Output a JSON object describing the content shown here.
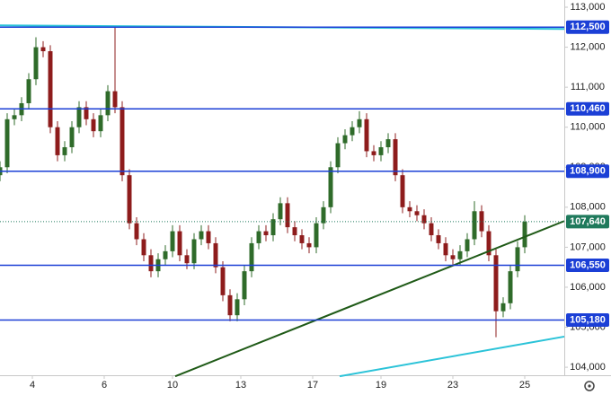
{
  "chart_data": {
    "type": "candlestick",
    "x": [
      0,
      2,
      4,
      6,
      8,
      10,
      12,
      14,
      16,
      18,
      20,
      22,
      24,
      26,
      28,
      30,
      32,
      34,
      36,
      38,
      40,
      42,
      44,
      46,
      48,
      50,
      52,
      54,
      56,
      58,
      60,
      62,
      64,
      66,
      68,
      70,
      72,
      74,
      76,
      78,
      80,
      82,
      84,
      86,
      88,
      90,
      92,
      94,
      96,
      98,
      100,
      102,
      104,
      106,
      108,
      110,
      112,
      114,
      116,
      118,
      120,
      122,
      124,
      126,
      128,
      130,
      132,
      134,
      136,
      138,
      140,
      142,
      144,
      146
    ],
    "open": [
      108800,
      109000,
      110200,
      110300,
      110600,
      111200,
      112000,
      111900,
      110000,
      109300,
      109500,
      110000,
      110500,
      110200,
      109900,
      110300,
      110900,
      110500,
      108800,
      107600,
      107200,
      106800,
      106400,
      106700,
      106900,
      107400,
      106800,
      106600,
      107200,
      107400,
      107100,
      106500,
      105800,
      105300,
      105700,
      106400,
      107100,
      107400,
      107300,
      107700,
      108100,
      107500,
      107300,
      107100,
      107000,
      107600,
      108000,
      109000,
      109600,
      109800,
      110000,
      110200,
      109400,
      109300,
      109500,
      109700,
      108800,
      108000,
      107900,
      107800,
      107600,
      107300,
      107100,
      106800,
      106700,
      106900,
      107200,
      107900,
      107400,
      106800,
      105400,
      105600,
      106400,
      107000
    ],
    "high": [
      109150,
      110350,
      110450,
      110750,
      111350,
      112250,
      112150,
      112050,
      110150,
      109650,
      110150,
      110650,
      110650,
      110350,
      110450,
      111050,
      112500,
      110650,
      108950,
      107750,
      107350,
      106950,
      106850,
      107050,
      107550,
      107550,
      106950,
      107350,
      107550,
      107550,
      107250,
      106650,
      105950,
      105850,
      106550,
      107250,
      107550,
      107550,
      107850,
      108250,
      108250,
      107650,
      107450,
      107250,
      107750,
      108150,
      109150,
      109750,
      109950,
      110150,
      110400,
      110350,
      109550,
      109650,
      109850,
      109850,
      108950,
      108150,
      108050,
      107950,
      107750,
      107450,
      107250,
      106950,
      107050,
      107350,
      108150,
      108050,
      107550,
      106950,
      105750,
      106550,
      107150,
      107800
    ],
    "low": [
      108650,
      108850,
      110050,
      110150,
      110450,
      111050,
      111750,
      109850,
      109150,
      109150,
      109350,
      109850,
      110050,
      109750,
      109750,
      110150,
      110350,
      108650,
      107450,
      107050,
      106650,
      106250,
      106250,
      106550,
      106750,
      106650,
      106450,
      106450,
      107050,
      106950,
      106350,
      105650,
      105150,
      105150,
      105550,
      106250,
      106950,
      107150,
      107150,
      107550,
      107350,
      107150,
      106950,
      106850,
      106850,
      107450,
      107850,
      108850,
      109450,
      109650,
      109850,
      109250,
      109150,
      109150,
      109350,
      108650,
      107850,
      107750,
      107650,
      107450,
      107150,
      106950,
      106650,
      106550,
      106550,
      106750,
      107050,
      107250,
      106650,
      104750,
      105250,
      105450,
      106250,
      106850
    ],
    "close": [
      109000,
      110200,
      110300,
      110600,
      111200,
      112000,
      111900,
      110000,
      109300,
      109500,
      110000,
      110500,
      110200,
      109900,
      110300,
      110900,
      110500,
      108800,
      107600,
      107200,
      106800,
      106400,
      106700,
      106900,
      107400,
      106800,
      106600,
      107200,
      107400,
      107100,
      106500,
      105800,
      105300,
      105700,
      106400,
      107100,
      107400,
      107300,
      107700,
      108100,
      107500,
      107300,
      107100,
      107000,
      107600,
      108000,
      109000,
      109600,
      109800,
      110000,
      110200,
      109400,
      109300,
      109500,
      109700,
      108800,
      108000,
      107900,
      107800,
      107600,
      107300,
      107100,
      106800,
      106700,
      106900,
      107200,
      107900,
      107400,
      106800,
      105400,
      105600,
      106400,
      107000,
      107640
    ],
    "up_color": "#2f6b2a",
    "down_color": "#8e1c1c",
    "xlim": [
      0,
      157
    ],
    "xticks": [
      {
        "value": 9,
        "label": "4"
      },
      {
        "value": 29,
        "label": "6"
      },
      {
        "value": 48,
        "label": "10"
      },
      {
        "value": 67,
        "label": "13"
      },
      {
        "value": 87,
        "label": "17"
      },
      {
        "value": 106,
        "label": "19"
      },
      {
        "value": 126,
        "label": "23"
      },
      {
        "value": 146,
        "label": "25"
      }
    ],
    "ylim": [
      103800,
      113180
    ],
    "yticks": [
      {
        "value": 104000,
        "label": "104,000"
      },
      {
        "value": 105000,
        "label": "105,000"
      },
      {
        "value": 106000,
        "label": "106,000"
      },
      {
        "value": 107000,
        "label": "107,000"
      },
      {
        "value": 108000,
        "label": "108,000"
      },
      {
        "value": 109000,
        "label": "109,000"
      },
      {
        "value": 110000,
        "label": "110,000"
      },
      {
        "value": 111000,
        "label": "111,000"
      },
      {
        "value": 112000,
        "label": "112,000"
      },
      {
        "value": 113000,
        "label": "113,000"
      }
    ],
    "grid": false,
    "levels": [
      {
        "value": 112500,
        "label": "112,500"
      },
      {
        "value": 110460,
        "label": "110,460"
      },
      {
        "value": 108900,
        "label": "108,900"
      },
      {
        "value": 106550,
        "label": "106,550"
      },
      {
        "value": 105180,
        "label": "105,180"
      }
    ],
    "level_color": "#1b3fd6",
    "last_price": {
      "value": 107640,
      "label": "107,640",
      "color": "#1f7a5c"
    },
    "lines": [
      {
        "x": [
          0,
          157
        ],
        "y": [
          112545,
          112455
        ],
        "color": "#2bc3d8"
      },
      {
        "x": [
          48.75,
          157
        ],
        "y": [
          103774,
          107654
        ],
        "color": "#1f5a17"
      },
      {
        "x": [
          94.5,
          157
        ],
        "y": [
          103774,
          104766
        ],
        "color": "#2bc3d8"
      }
    ]
  }
}
